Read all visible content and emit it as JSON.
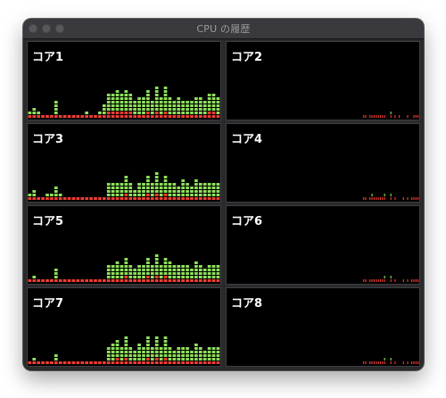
{
  "window": {
    "title": "CPU の履歴"
  },
  "colors": {
    "user": "#8ee05a",
    "system": "#ef3d34",
    "background": "#000000"
  },
  "cores": [
    {
      "label": "コア1",
      "levels": [
        0.15,
        0.18,
        0.14,
        0.08,
        0.08,
        0.09,
        0.32,
        0.09,
        0.04,
        0.09,
        0.05,
        0.05,
        0.05,
        0.11,
        0.05,
        0.09,
        0.16,
        0.24,
        0.44,
        0.48,
        0.5,
        0.44,
        0.51,
        0.44,
        0.32,
        0.38,
        0.41,
        0.5,
        0.32,
        0.62,
        0.41,
        0.59,
        0.41,
        0.36,
        0.41,
        0.36,
        0.36,
        0.32,
        0.41,
        0.38,
        0.32,
        0.45,
        0.45,
        0.38
      ]
    },
    {
      "label": "コア2",
      "levels": [
        0,
        0,
        0,
        0,
        0,
        0,
        0,
        0,
        0,
        0,
        0,
        0,
        0,
        0,
        0,
        0,
        0,
        0,
        0,
        0,
        0,
        0,
        0,
        0,
        0,
        0,
        0,
        0,
        0,
        0,
        0,
        0,
        0,
        0,
        0,
        0,
        0,
        0,
        0,
        0,
        0,
        0,
        0,
        0,
        0,
        0,
        0,
        0,
        0,
        0,
        0,
        0,
        0,
        0,
        0,
        0,
        0,
        0,
        0,
        0,
        0,
        0,
        0,
        0,
        0,
        0.05,
        0.05,
        0,
        0.09,
        0.05,
        0.05,
        0.05,
        0.09,
        0.05,
        0.05,
        0.09,
        0,
        0,
        0.14,
        0,
        0.09,
        0,
        0.05,
        0,
        0,
        0,
        0.05,
        0,
        0,
        0.05,
        0.05,
        0.05
      ]
    },
    {
      "label": "コア3",
      "levels": [
        0.12,
        0.18,
        0.09,
        0.09,
        0.12,
        0.1,
        0.28,
        0.1,
        0.05,
        0.05,
        0.05,
        0.05,
        0.05,
        0.05,
        0.05,
        0.05,
        0.05,
        0.05,
        0.32,
        0.36,
        0.36,
        0.3,
        0.45,
        0.36,
        0.22,
        0.36,
        0.32,
        0.45,
        0.36,
        0.55,
        0.36,
        0.45,
        0.36,
        0.32,
        0.27,
        0.41,
        0.36,
        0.27,
        0.41,
        0.36,
        0.32,
        0.36,
        0.36,
        0.36
      ]
    },
    {
      "label": "コア4",
      "levels": [
        0,
        0,
        0,
        0,
        0,
        0,
        0,
        0,
        0,
        0,
        0,
        0,
        0,
        0,
        0,
        0,
        0,
        0,
        0,
        0,
        0,
        0,
        0,
        0,
        0,
        0,
        0,
        0,
        0,
        0,
        0,
        0,
        0,
        0,
        0,
        0,
        0,
        0,
        0,
        0,
        0,
        0,
        0,
        0,
        0,
        0,
        0,
        0,
        0,
        0,
        0,
        0,
        0,
        0,
        0,
        0,
        0,
        0,
        0,
        0,
        0,
        0,
        0,
        0,
        0,
        0.05,
        0.05,
        0,
        0.09,
        0.14,
        0.05,
        0.09,
        0.05,
        0.09,
        0.09,
        0.14,
        0,
        0,
        0.14,
        0,
        0.09,
        0,
        0,
        0,
        0.09,
        0,
        0.05,
        0,
        0.05,
        0.09,
        0.05,
        0.05
      ]
    },
    {
      "label": "コア5",
      "levels": [
        0.09,
        0.14,
        0.09,
        0.09,
        0.09,
        0.09,
        0.27,
        0.09,
        0.05,
        0.05,
        0.05,
        0.05,
        0.05,
        0.05,
        0.05,
        0.05,
        0.05,
        0.09,
        0.32,
        0.36,
        0.41,
        0.32,
        0.45,
        0.36,
        0.27,
        0.36,
        0.36,
        0.45,
        0.32,
        0.55,
        0.36,
        0.45,
        0.41,
        0.32,
        0.36,
        0.36,
        0.36,
        0.27,
        0.41,
        0.36,
        0.27,
        0.36,
        0.36,
        0.32
      ]
    },
    {
      "label": "コア6",
      "levels": [
        0,
        0,
        0,
        0,
        0,
        0,
        0,
        0,
        0,
        0,
        0,
        0,
        0,
        0,
        0,
        0,
        0,
        0,
        0,
        0,
        0,
        0,
        0,
        0,
        0,
        0,
        0,
        0,
        0,
        0,
        0,
        0,
        0,
        0,
        0,
        0,
        0,
        0,
        0,
        0,
        0,
        0,
        0,
        0,
        0,
        0,
        0,
        0,
        0,
        0,
        0,
        0,
        0,
        0,
        0,
        0,
        0,
        0,
        0,
        0,
        0,
        0,
        0,
        0,
        0,
        0.09,
        0.05,
        0,
        0.09,
        0.05,
        0.05,
        0.05,
        0.09,
        0.09,
        0.05,
        0.14,
        0,
        0,
        0.14,
        0,
        0.05,
        0,
        0,
        0,
        0.05,
        0,
        0.05,
        0,
        0.05,
        0.05,
        0.05,
        0.05
      ]
    },
    {
      "label": "コア7",
      "levels": [
        0.09,
        0.12,
        0.09,
        0.05,
        0.09,
        0.05,
        0.23,
        0.09,
        0.05,
        0.05,
        0.05,
        0.05,
        0.05,
        0.05,
        0.05,
        0.05,
        0.05,
        0.09,
        0.36,
        0.41,
        0.45,
        0.32,
        0.5,
        0.36,
        0.27,
        0.41,
        0.32,
        0.5,
        0.32,
        0.55,
        0.36,
        0.5,
        0.36,
        0.27,
        0.36,
        0.32,
        0.32,
        0.27,
        0.41,
        0.32,
        0.27,
        0.32,
        0.32,
        0.32
      ]
    },
    {
      "label": "コア8",
      "levels": [
        0,
        0,
        0,
        0,
        0,
        0,
        0,
        0,
        0,
        0,
        0,
        0,
        0,
        0,
        0,
        0,
        0,
        0,
        0,
        0,
        0,
        0,
        0,
        0,
        0,
        0,
        0,
        0,
        0,
        0,
        0,
        0,
        0,
        0,
        0,
        0,
        0,
        0,
        0,
        0,
        0,
        0,
        0,
        0,
        0,
        0,
        0,
        0,
        0,
        0,
        0,
        0,
        0,
        0,
        0,
        0,
        0,
        0,
        0,
        0,
        0,
        0,
        0,
        0,
        0,
        0.09,
        0.05,
        0,
        0.09,
        0.05,
        0.05,
        0.05,
        0.09,
        0.09,
        0.05,
        0.14,
        0,
        0,
        0.14,
        0,
        0.09,
        0,
        0,
        0,
        0.05,
        0,
        0.05,
        0,
        0.05,
        0.09,
        0.05,
        0.05
      ]
    }
  ]
}
